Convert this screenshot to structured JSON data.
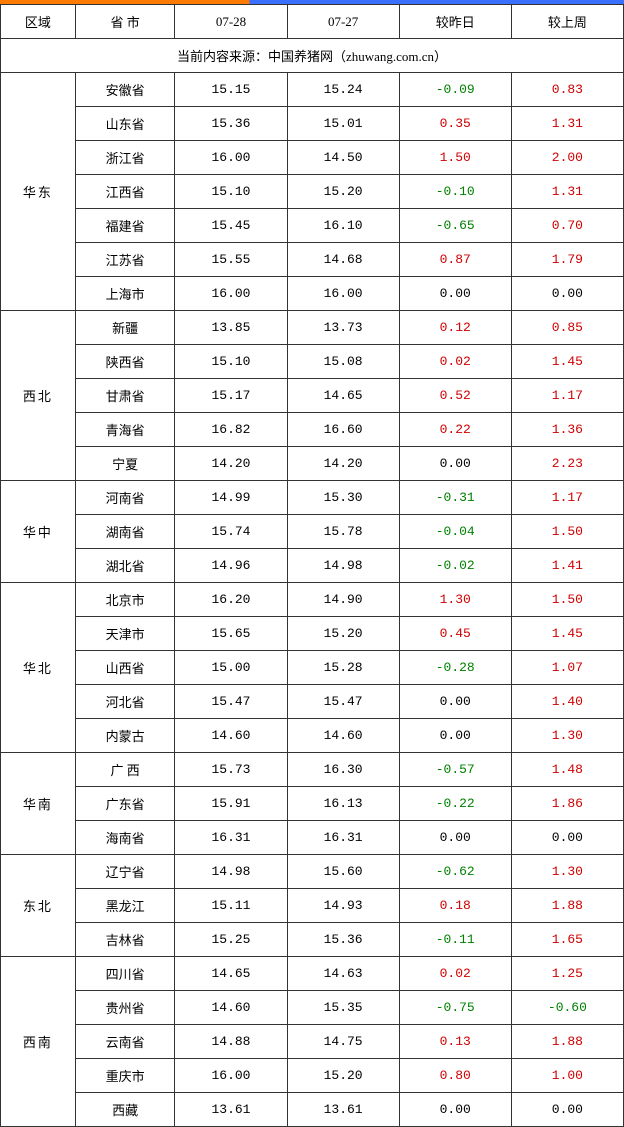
{
  "header": {
    "columns": [
      "区域",
      "省 市",
      "07-28",
      "07-27",
      "较昨日",
      "较上周"
    ]
  },
  "source_line": "当前内容来源：中国养猪网（zhuwang.com.cn）",
  "colors": {
    "positive": "#d00000",
    "negative": "#008000",
    "zero": "#000000",
    "border": "#333333",
    "background": "#ffffff"
  },
  "regions": [
    {
      "name": "华东",
      "rows": [
        {
          "prov": "安徽省",
          "v1": "15.15",
          "v2": "15.24",
          "d1": "-0.09",
          "d2": "0.83"
        },
        {
          "prov": "山东省",
          "v1": "15.36",
          "v2": "15.01",
          "d1": "0.35",
          "d2": "1.31"
        },
        {
          "prov": "浙江省",
          "v1": "16.00",
          "v2": "14.50",
          "d1": "1.50",
          "d2": "2.00"
        },
        {
          "prov": "江西省",
          "v1": "15.10",
          "v2": "15.20",
          "d1": "-0.10",
          "d2": "1.31"
        },
        {
          "prov": "福建省",
          "v1": "15.45",
          "v2": "16.10",
          "d1": "-0.65",
          "d2": "0.70"
        },
        {
          "prov": "江苏省",
          "v1": "15.55",
          "v2": "14.68",
          "d1": "0.87",
          "d2": "1.79"
        },
        {
          "prov": "上海市",
          "v1": "16.00",
          "v2": "16.00",
          "d1": "0.00",
          "d2": "0.00"
        }
      ]
    },
    {
      "name": "西北",
      "rows": [
        {
          "prov": "新疆",
          "v1": "13.85",
          "v2": "13.73",
          "d1": "0.12",
          "d2": "0.85"
        },
        {
          "prov": "陕西省",
          "v1": "15.10",
          "v2": "15.08",
          "d1": "0.02",
          "d2": "1.45"
        },
        {
          "prov": "甘肃省",
          "v1": "15.17",
          "v2": "14.65",
          "d1": "0.52",
          "d2": "1.17"
        },
        {
          "prov": "青海省",
          "v1": "16.82",
          "v2": "16.60",
          "d1": "0.22",
          "d2": "1.36"
        },
        {
          "prov": "宁夏",
          "v1": "14.20",
          "v2": "14.20",
          "d1": "0.00",
          "d2": "2.23"
        }
      ]
    },
    {
      "name": "华中",
      "rows": [
        {
          "prov": "河南省",
          "v1": "14.99",
          "v2": "15.30",
          "d1": "-0.31",
          "d2": "1.17"
        },
        {
          "prov": "湖南省",
          "v1": "15.74",
          "v2": "15.78",
          "d1": "-0.04",
          "d2": "1.50"
        },
        {
          "prov": "湖北省",
          "v1": "14.96",
          "v2": "14.98",
          "d1": "-0.02",
          "d2": "1.41"
        }
      ]
    },
    {
      "name": "华北",
      "rows": [
        {
          "prov": "北京市",
          "v1": "16.20",
          "v2": "14.90",
          "d1": "1.30",
          "d2": "1.50"
        },
        {
          "prov": "天津市",
          "v1": "15.65",
          "v2": "15.20",
          "d1": "0.45",
          "d2": "1.45"
        },
        {
          "prov": "山西省",
          "v1": "15.00",
          "v2": "15.28",
          "d1": "-0.28",
          "d2": "1.07"
        },
        {
          "prov": "河北省",
          "v1": "15.47",
          "v2": "15.47",
          "d1": "0.00",
          "d2": "1.40"
        },
        {
          "prov": "内蒙古",
          "v1": "14.60",
          "v2": "14.60",
          "d1": "0.00",
          "d2": "1.30"
        }
      ]
    },
    {
      "name": "华南",
      "rows": [
        {
          "prov": "广 西",
          "v1": "15.73",
          "v2": "16.30",
          "d1": "-0.57",
          "d2": "1.48"
        },
        {
          "prov": "广东省",
          "v1": "15.91",
          "v2": "16.13",
          "d1": "-0.22",
          "d2": "1.86"
        },
        {
          "prov": "海南省",
          "v1": "16.31",
          "v2": "16.31",
          "d1": "0.00",
          "d2": "0.00"
        }
      ]
    },
    {
      "name": "东北",
      "rows": [
        {
          "prov": "辽宁省",
          "v1": "14.98",
          "v2": "15.60",
          "d1": "-0.62",
          "d2": "1.30"
        },
        {
          "prov": "黑龙江",
          "v1": "15.11",
          "v2": "14.93",
          "d1": "0.18",
          "d2": "1.88"
        },
        {
          "prov": "吉林省",
          "v1": "15.25",
          "v2": "15.36",
          "d1": "-0.11",
          "d2": "1.65"
        }
      ]
    },
    {
      "name": "西南",
      "rows": [
        {
          "prov": "四川省",
          "v1": "14.65",
          "v2": "14.63",
          "d1": "0.02",
          "d2": "1.25"
        },
        {
          "prov": "贵州省",
          "v1": "14.60",
          "v2": "15.35",
          "d1": "-0.75",
          "d2": "-0.60"
        },
        {
          "prov": "云南省",
          "v1": "14.88",
          "v2": "14.75",
          "d1": "0.13",
          "d2": "1.88"
        },
        {
          "prov": "重庆市",
          "v1": "16.00",
          "v2": "15.20",
          "d1": "0.80",
          "d2": "1.00"
        },
        {
          "prov": "西藏",
          "v1": "13.61",
          "v2": "13.61",
          "d1": "0.00",
          "d2": "0.00"
        }
      ]
    }
  ]
}
